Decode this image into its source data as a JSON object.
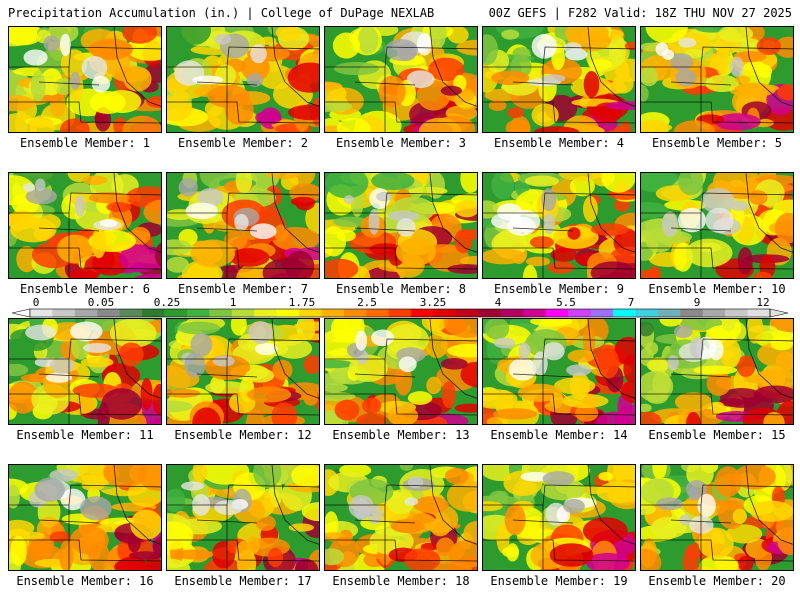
{
  "header": {
    "left_title": "Precipitation Accumulation (in.) | College of DuPage NEXLAB",
    "right_title": "00Z GEFS | F282 Valid: 18Z THU NOV 27 2025"
  },
  "panels": [
    {
      "label": "Ensemble Member: 1"
    },
    {
      "label": "Ensemble Member: 2"
    },
    {
      "label": "Ensemble Member: 3"
    },
    {
      "label": "Ensemble Member: 4"
    },
    {
      "label": "Ensemble Member: 5"
    },
    {
      "label": "Ensemble Member: 6"
    },
    {
      "label": "Ensemble Member: 7"
    },
    {
      "label": "Ensemble Member: 8"
    },
    {
      "label": "Ensemble Member: 9"
    },
    {
      "label": "Ensemble Member: 10"
    },
    {
      "label": "Ensemble Member: 11"
    },
    {
      "label": "Ensemble Member: 12"
    },
    {
      "label": "Ensemble Member: 13"
    },
    {
      "label": "Ensemble Member: 14"
    },
    {
      "label": "Ensemble Member: 15"
    },
    {
      "label": "Ensemble Member: 16"
    },
    {
      "label": "Ensemble Member: 17"
    },
    {
      "label": "Ensemble Member: 18"
    },
    {
      "label": "Ensemble Member: 19"
    },
    {
      "label": "Ensemble Member: 20"
    }
  ],
  "colorbar": {
    "tick_labels": [
      "0",
      "0.05",
      "0.25",
      "1",
      "1.75",
      "2.5",
      "3.25",
      "4",
      "5.5",
      "7",
      "9",
      "12"
    ],
    "colors": [
      "#e6e6e6",
      "#c8c8c8",
      "#a8a8a8",
      "#8a8a8a",
      "#5a8a5a",
      "#2e7d2e",
      "#2e9b2e",
      "#3fb23f",
      "#7fc63f",
      "#b7dc3a",
      "#e8f020",
      "#ffff00",
      "#ffd700",
      "#ffb000",
      "#ff8c00",
      "#ff6a00",
      "#ff3c00",
      "#ff0000",
      "#e00000",
      "#c00018",
      "#a00030",
      "#b00060",
      "#d00090",
      "#ff00ff",
      "#d040ff",
      "#a070ff",
      "#00ffff",
      "#40d0e0",
      "#70b0b8",
      "#8a8a8a",
      "#a8a8a8",
      "#c8c8c8",
      "#e0e0e0"
    ]
  }
}
